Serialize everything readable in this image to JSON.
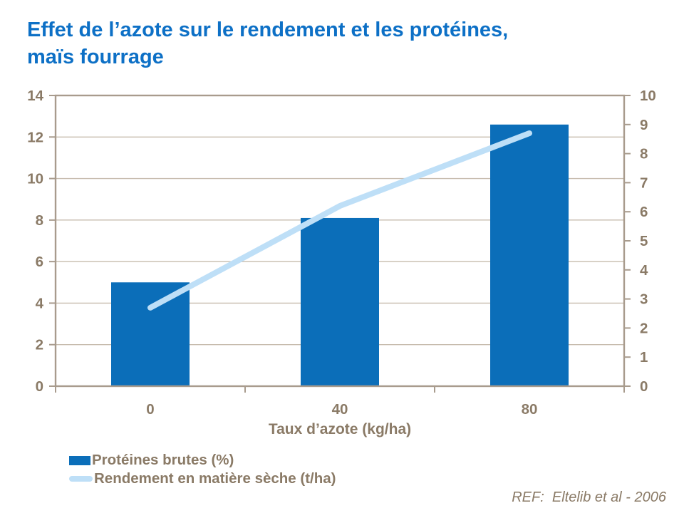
{
  "title": {
    "line1": "Effet de l’azote sur le rendement et les protéines,",
    "line2": "maïs fourrage"
  },
  "ref": "REF:  Eltelib et al - 2006",
  "colors": {
    "title_blue": "#0d70c6",
    "bar_blue": "#0b6eb9",
    "line_light_blue": "#bedff7",
    "axis_text_brown": "#8a7a66",
    "gridline": "#c7bcae",
    "frame": "#a89b8d"
  },
  "legend": {
    "items": [
      {
        "label": "Protéines brutes (%)",
        "swatch": "bar"
      },
      {
        "label": "Rendement en matière sèche (t/ha)",
        "swatch": "line"
      }
    ]
  },
  "chart_data": {
    "type": "bar",
    "subtype": "bar+line-dual-axis",
    "title": "Effet de l’azote sur le rendement et les protéines, maïs fourrage",
    "xlabel": "Taux d’azote (kg/ha)",
    "categories": [
      "0",
      "40",
      "80"
    ],
    "series": [
      {
        "name": "Protéines brutes (%)",
        "type": "bar",
        "axis": "left",
        "values": [
          5.0,
          8.1,
          12.6
        ]
      },
      {
        "name": "Rendement en matière sèche (t/ha)",
        "type": "line",
        "axis": "right",
        "values": [
          2.7,
          6.2,
          8.7
        ]
      }
    ],
    "left_axis": {
      "min": 0,
      "max": 14,
      "step": 2,
      "ticks": [
        "0",
        "2",
        "4",
        "6",
        "8",
        "10",
        "12",
        "14"
      ]
    },
    "right_axis": {
      "min": 0,
      "max": 10,
      "step": 1,
      "ticks": [
        "0",
        "1",
        "2",
        "3",
        "4",
        "5",
        "6",
        "7",
        "8",
        "9",
        "10"
      ]
    },
    "grid": true,
    "legend_position": "bottom-left"
  }
}
